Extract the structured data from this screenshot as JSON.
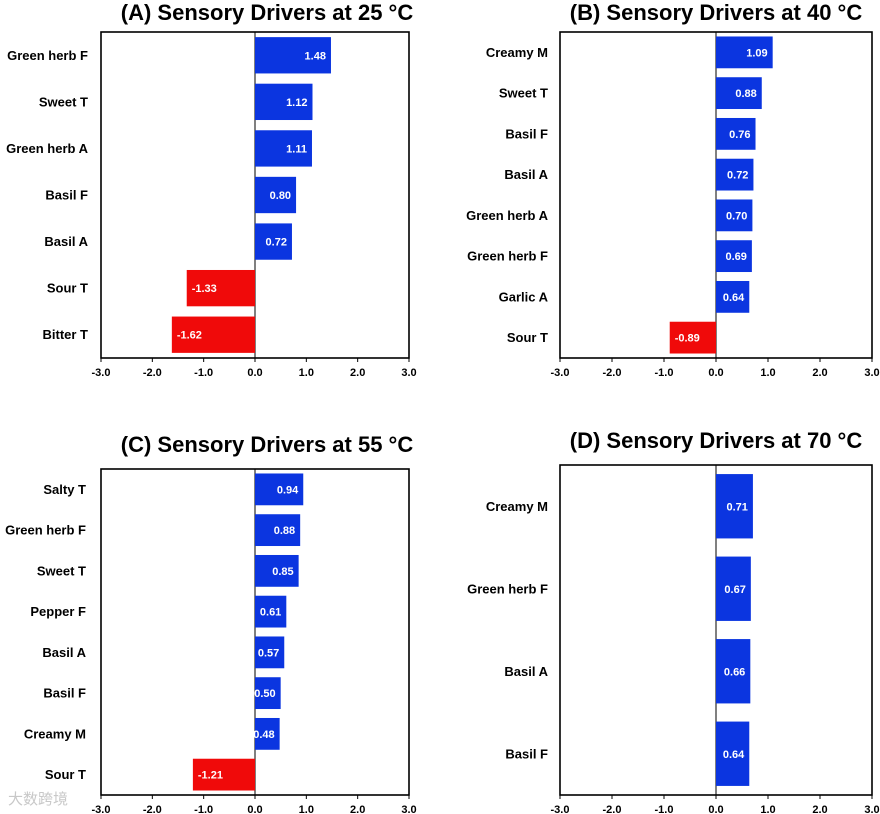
{
  "colors": {
    "positive": "#0b35e0",
    "negative": "#f00a0a"
  },
  "watermark": "大数跨境",
  "chart_data": [
    {
      "type": "bar",
      "orientation": "horizontal",
      "title": "(A) Sensory Drivers at 25 °C",
      "categories": [
        "Green herb F",
        "Sweet T",
        "Green herb A",
        "Basil F",
        "Basil A",
        "Sour T",
        "Bitter T"
      ],
      "values": [
        1.48,
        1.12,
        1.11,
        0.8,
        0.72,
        -1.33,
        -1.62
      ],
      "labels": [
        "1.48",
        "1.12",
        "1.11",
        "0.80",
        "0.72",
        "-1.33",
        "-1.62"
      ],
      "xlim": [
        -3.0,
        3.0
      ],
      "xticks": [
        "-3.0",
        "-2.0",
        "-1.0",
        "0.0",
        "1.0",
        "2.0",
        "3.0"
      ]
    },
    {
      "type": "bar",
      "orientation": "horizontal",
      "title": "(B) Sensory Drivers at 40 °C",
      "categories": [
        "Creamy M",
        "Sweet T",
        "Basil F",
        "Basil A",
        "Green herb A",
        "Green herb F",
        "Garlic A",
        "Sour T"
      ],
      "values": [
        1.09,
        0.88,
        0.76,
        0.72,
        0.7,
        0.69,
        0.64,
        -0.89
      ],
      "labels": [
        "1.09",
        "0.88",
        "0.76",
        "0.72",
        "0.70",
        "0.69",
        "0.64",
        "-0.89"
      ],
      "xlim": [
        -3.0,
        3.0
      ],
      "xticks": [
        "-3.0",
        "-2.0",
        "-1.0",
        "0.0",
        "1.0",
        "2.0",
        "3.0"
      ]
    },
    {
      "type": "bar",
      "orientation": "horizontal",
      "title": "(C) Sensory Drivers at 55 °C",
      "categories": [
        "Salty T",
        "Green herb F",
        "Sweet T",
        "Pepper F",
        "Basil A",
        "Basil F",
        "Creamy M",
        "Sour T"
      ],
      "values": [
        0.94,
        0.88,
        0.85,
        0.61,
        0.57,
        0.5,
        0.48,
        -1.21
      ],
      "labels": [
        "0.94",
        "0.88",
        "0.85",
        "0.61",
        "0.57",
        "0.50",
        "0.48",
        "-1.21"
      ],
      "xlim": [
        -3.0,
        3.0
      ],
      "xticks": [
        "-3.0",
        "-2.0",
        "-1.0",
        "0.0",
        "1.0",
        "2.0",
        "3.0"
      ]
    },
    {
      "type": "bar",
      "orientation": "horizontal",
      "title": "(D) Sensory Drivers at 70 °C",
      "categories": [
        "Creamy M",
        "Green herb F",
        "Basil A",
        "Basil F"
      ],
      "values": [
        0.71,
        0.67,
        0.66,
        0.64
      ],
      "labels": [
        "0.71",
        "0.67",
        "0.66",
        "0.64"
      ],
      "xlim": [
        -3.0,
        3.0
      ],
      "xticks": [
        "-3.0",
        "-2.0",
        "-1.0",
        "0.0",
        "1.0",
        "2.0",
        "3.0"
      ]
    }
  ]
}
